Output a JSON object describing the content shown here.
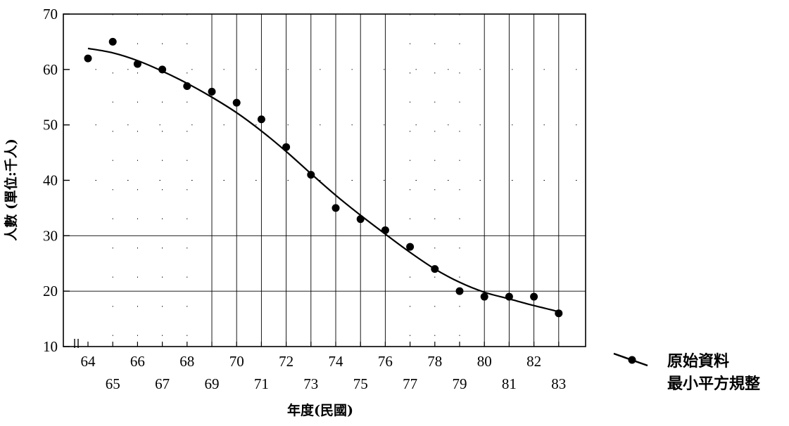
{
  "chart_data": {
    "type": "scatter",
    "xlabel": "年度(民國)",
    "ylabel": "人數 (單位:千人)",
    "xlim": [
      64,
      83
    ],
    "ylim": [
      10,
      70
    ],
    "x_ticks": [
      64,
      65,
      66,
      67,
      68,
      69,
      70,
      71,
      72,
      73,
      74,
      75,
      76,
      77,
      78,
      79,
      80,
      81,
      82,
      83
    ],
    "y_ticks": [
      10,
      20,
      30,
      40,
      50,
      60,
      70
    ],
    "y_axis_break": true,
    "grid": {
      "horizontal_solid": [
        20,
        30
      ],
      "horizontal_dotted": [
        40,
        50,
        60
      ],
      "vertical_solid": [
        69,
        70,
        71,
        72,
        73,
        74,
        75,
        76,
        80,
        81,
        82,
        83
      ],
      "vertical_dotted": [
        65,
        66,
        67,
        68,
        77,
        78,
        79
      ]
    },
    "legend_position": "right",
    "series": [
      {
        "name": "原始資料",
        "kind": "points",
        "x": [
          64,
          65,
          66,
          67,
          68,
          69,
          70,
          71,
          72,
          73,
          74,
          75,
          76,
          77,
          78,
          79,
          80,
          81,
          82,
          83
        ],
        "y": [
          62,
          65,
          61,
          60,
          57,
          56,
          54,
          51,
          46,
          41,
          35,
          33,
          31,
          28,
          24,
          20,
          19,
          19,
          19,
          16
        ]
      },
      {
        "name": "最小平方規整",
        "kind": "line",
        "x": [
          64,
          65,
          66,
          67,
          68,
          69,
          70,
          71,
          72,
          73,
          74,
          75,
          76,
          77,
          78,
          79,
          80,
          81,
          82,
          83
        ],
        "y": [
          63.8,
          63.0,
          61.6,
          59.7,
          57.5,
          55.0,
          52.2,
          48.9,
          45.2,
          41.2,
          37.3,
          33.7,
          30.3,
          27.0,
          24.0,
          21.6,
          19.8,
          18.6,
          17.4,
          16.3
        ]
      }
    ]
  }
}
